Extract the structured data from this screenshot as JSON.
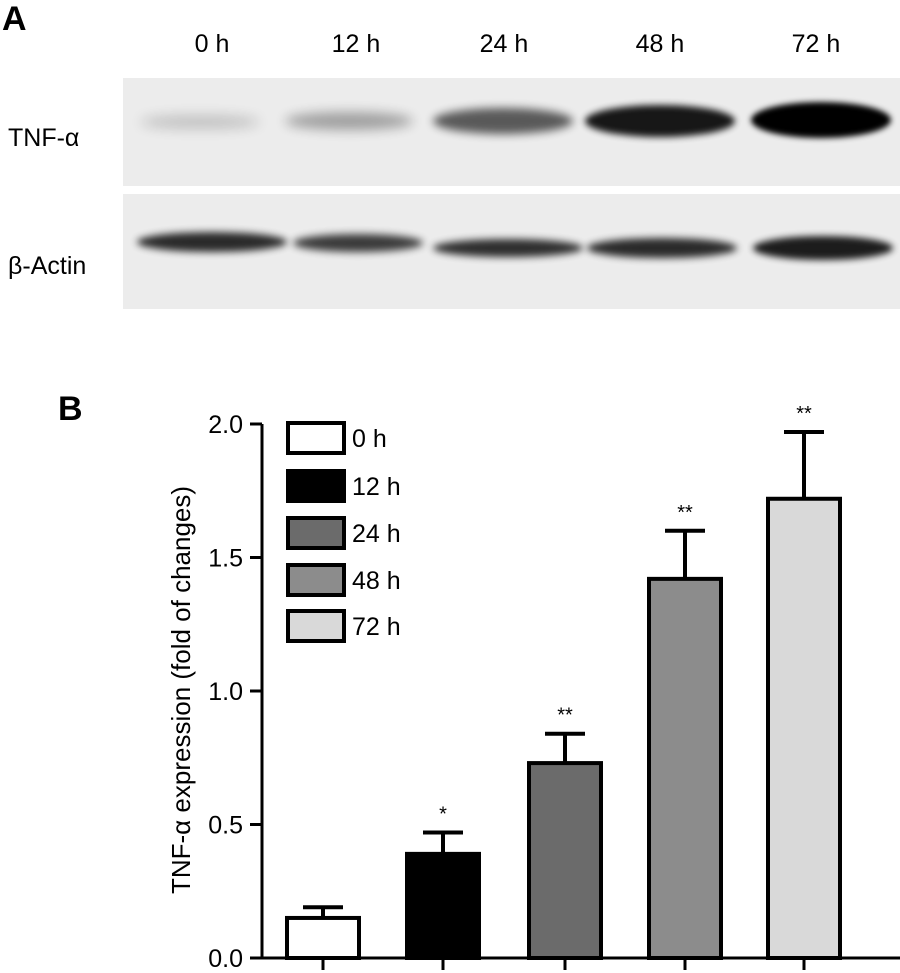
{
  "panel_a": {
    "label": "A",
    "lanes": [
      "0 h",
      "12 h",
      "24 h",
      "48 h",
      "72 h"
    ],
    "rows": [
      {
        "label": "TNF-α",
        "band_intensity": [
          0.18,
          0.32,
          0.62,
          0.9,
          1.0
        ]
      },
      {
        "label": "β-Actin",
        "band_intensity": [
          0.82,
          0.75,
          0.8,
          0.82,
          0.88
        ]
      }
    ]
  },
  "panel_b": {
    "label": "B"
  },
  "chart_data": {
    "type": "bar",
    "categories": [
      "0 h",
      "12 h",
      "24 h",
      "48 h",
      "72 h"
    ],
    "values": [
      0.15,
      0.39,
      0.73,
      1.42,
      1.72
    ],
    "error": [
      0.04,
      0.08,
      0.11,
      0.18,
      0.25
    ],
    "significance": [
      "",
      "*",
      "**",
      "**",
      "**"
    ],
    "colors": [
      "#ffffff",
      "#000000",
      "#6b6b6b",
      "#8c8c8c",
      "#d9d9d9"
    ],
    "ylabel": "TNF-α expression (fold of changes)",
    "ylim": [
      0,
      2.0
    ],
    "yticks": [
      "0.0",
      "0.5",
      "1.0",
      "1.5",
      "2.0"
    ],
    "legend": {
      "placement": "top-left",
      "entries": [
        "0 h",
        "12 h",
        "24 h",
        "48 h",
        "72 h"
      ]
    }
  }
}
